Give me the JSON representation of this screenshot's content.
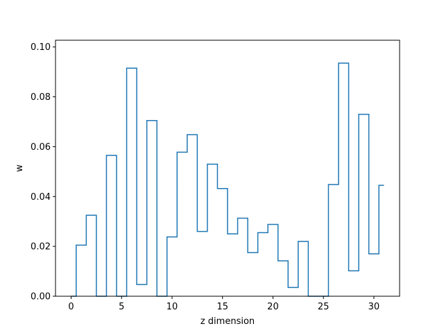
{
  "chart_data": {
    "type": "line",
    "drawstyle": "steps-mid",
    "xlabel": "z dimension",
    "ylabel": "w",
    "xlim": [
      -1.55,
      32.55
    ],
    "ylim": [
      0.0,
      0.1027
    ],
    "xticks": [
      0,
      5,
      10,
      15,
      20,
      25,
      30
    ],
    "yticks": [
      0.0,
      0.02,
      0.04,
      0.06,
      0.08,
      0.1
    ],
    "xtick_labels": [
      "0",
      "5",
      "10",
      "15",
      "20",
      "25",
      "30"
    ],
    "ytick_labels": [
      "0.00",
      "0.02",
      "0.04",
      "0.06",
      "0.08",
      "0.10"
    ],
    "grid": false,
    "color": "#1f77b4",
    "series": [
      {
        "x": [
          0,
          1,
          2,
          3,
          4,
          5,
          6,
          7,
          8,
          9,
          10,
          11,
          12,
          13,
          14,
          15,
          16,
          17,
          18,
          19,
          20,
          21,
          22,
          23,
          24,
          25,
          26,
          27,
          28,
          29,
          30,
          31
        ],
        "values": [
          0.0,
          0.0205,
          0.0325,
          0.0,
          0.0565,
          0.0,
          0.0915,
          0.0047,
          0.0705,
          0.0,
          0.0238,
          0.0578,
          0.0648,
          0.026,
          0.053,
          0.0432,
          0.025,
          0.0313,
          0.0175,
          0.0255,
          0.0288,
          0.0142,
          0.0035,
          0.022,
          0.0,
          0.0,
          0.0448,
          0.0935,
          0.0102,
          0.073,
          0.017,
          0.0445
        ]
      }
    ]
  }
}
